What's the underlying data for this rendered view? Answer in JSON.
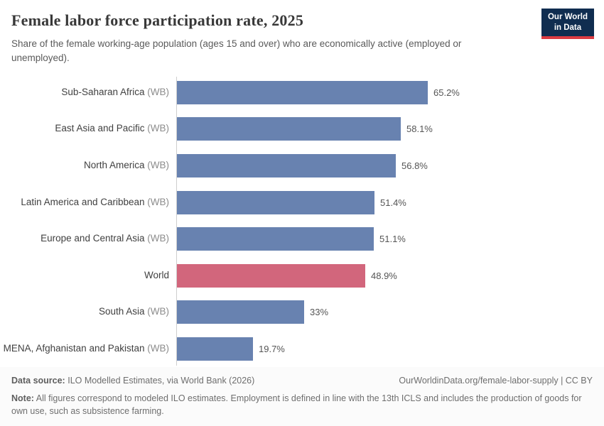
{
  "header": {
    "title": "Female labor force participation rate, 2025",
    "subtitle": "Share of the female working-age population (ages 15 and over) who are economically active (employed or unemployed).",
    "logo": {
      "line1": "Our World",
      "line2": "in Data",
      "bg_color": "#102d50",
      "accent_color": "#dc3b42"
    }
  },
  "chart_data": {
    "type": "bar",
    "orientation": "horizontal",
    "title": "Female labor force participation rate, 2025",
    "xlabel": "",
    "ylabel": "",
    "unit": "%",
    "xlim": [
      0,
      70
    ],
    "grid": false,
    "legend": "none",
    "bar_color": "#6882b0",
    "highlight_color": "#d2667c",
    "categories": [
      "Sub-Saharan Africa (WB)",
      "East Asia and Pacific (WB)",
      "North America (WB)",
      "Latin America and Caribbean (WB)",
      "Europe and Central Asia (WB)",
      "World",
      "South Asia (WB)",
      "MENA, Afghanistan and Pakistan (WB)"
    ],
    "values": [
      65.2,
      58.1,
      56.8,
      51.4,
      51.1,
      48.9,
      33,
      19.7
    ],
    "value_labels": [
      "65.2%",
      "58.1%",
      "56.8%",
      "51.4%",
      "51.1%",
      "48.9%",
      "33%",
      "19.7%"
    ],
    "highlight_index": 5,
    "rows": [
      {
        "label": "Sub-Saharan Africa",
        "suffix": "(WB)",
        "value": 65.2,
        "display": "65.2%",
        "highlight": false
      },
      {
        "label": "East Asia and Pacific",
        "suffix": "(WB)",
        "value": 58.1,
        "display": "58.1%",
        "highlight": false
      },
      {
        "label": "North America",
        "suffix": "(WB)",
        "value": 56.8,
        "display": "56.8%",
        "highlight": false
      },
      {
        "label": "Latin America and Caribbean",
        "suffix": "(WB)",
        "value": 51.4,
        "display": "51.4%",
        "highlight": false
      },
      {
        "label": "Europe and Central Asia",
        "suffix": "(WB)",
        "value": 51.1,
        "display": "51.1%",
        "highlight": false
      },
      {
        "label": "World",
        "suffix": "",
        "value": 48.9,
        "display": "48.9%",
        "highlight": true
      },
      {
        "label": "South Asia",
        "suffix": "(WB)",
        "value": 33,
        "display": "33%",
        "highlight": false
      },
      {
        "label": "MENA, Afghanistan and Pakistan",
        "suffix": "(WB)",
        "value": 19.7,
        "display": "19.7%",
        "highlight": false
      }
    ]
  },
  "footer": {
    "source_label": "Data source:",
    "source_text": "ILO Modelled Estimates, via World Bank (2026)",
    "link_text": "OurWorldinData.org/female-labor-supply | CC BY",
    "note_label": "Note:",
    "note_text": "All figures correspond to modeled ILO estimates. Employment is defined in line with the 13th ICLS and includes the production of goods for own use, such as subsistence farming."
  }
}
